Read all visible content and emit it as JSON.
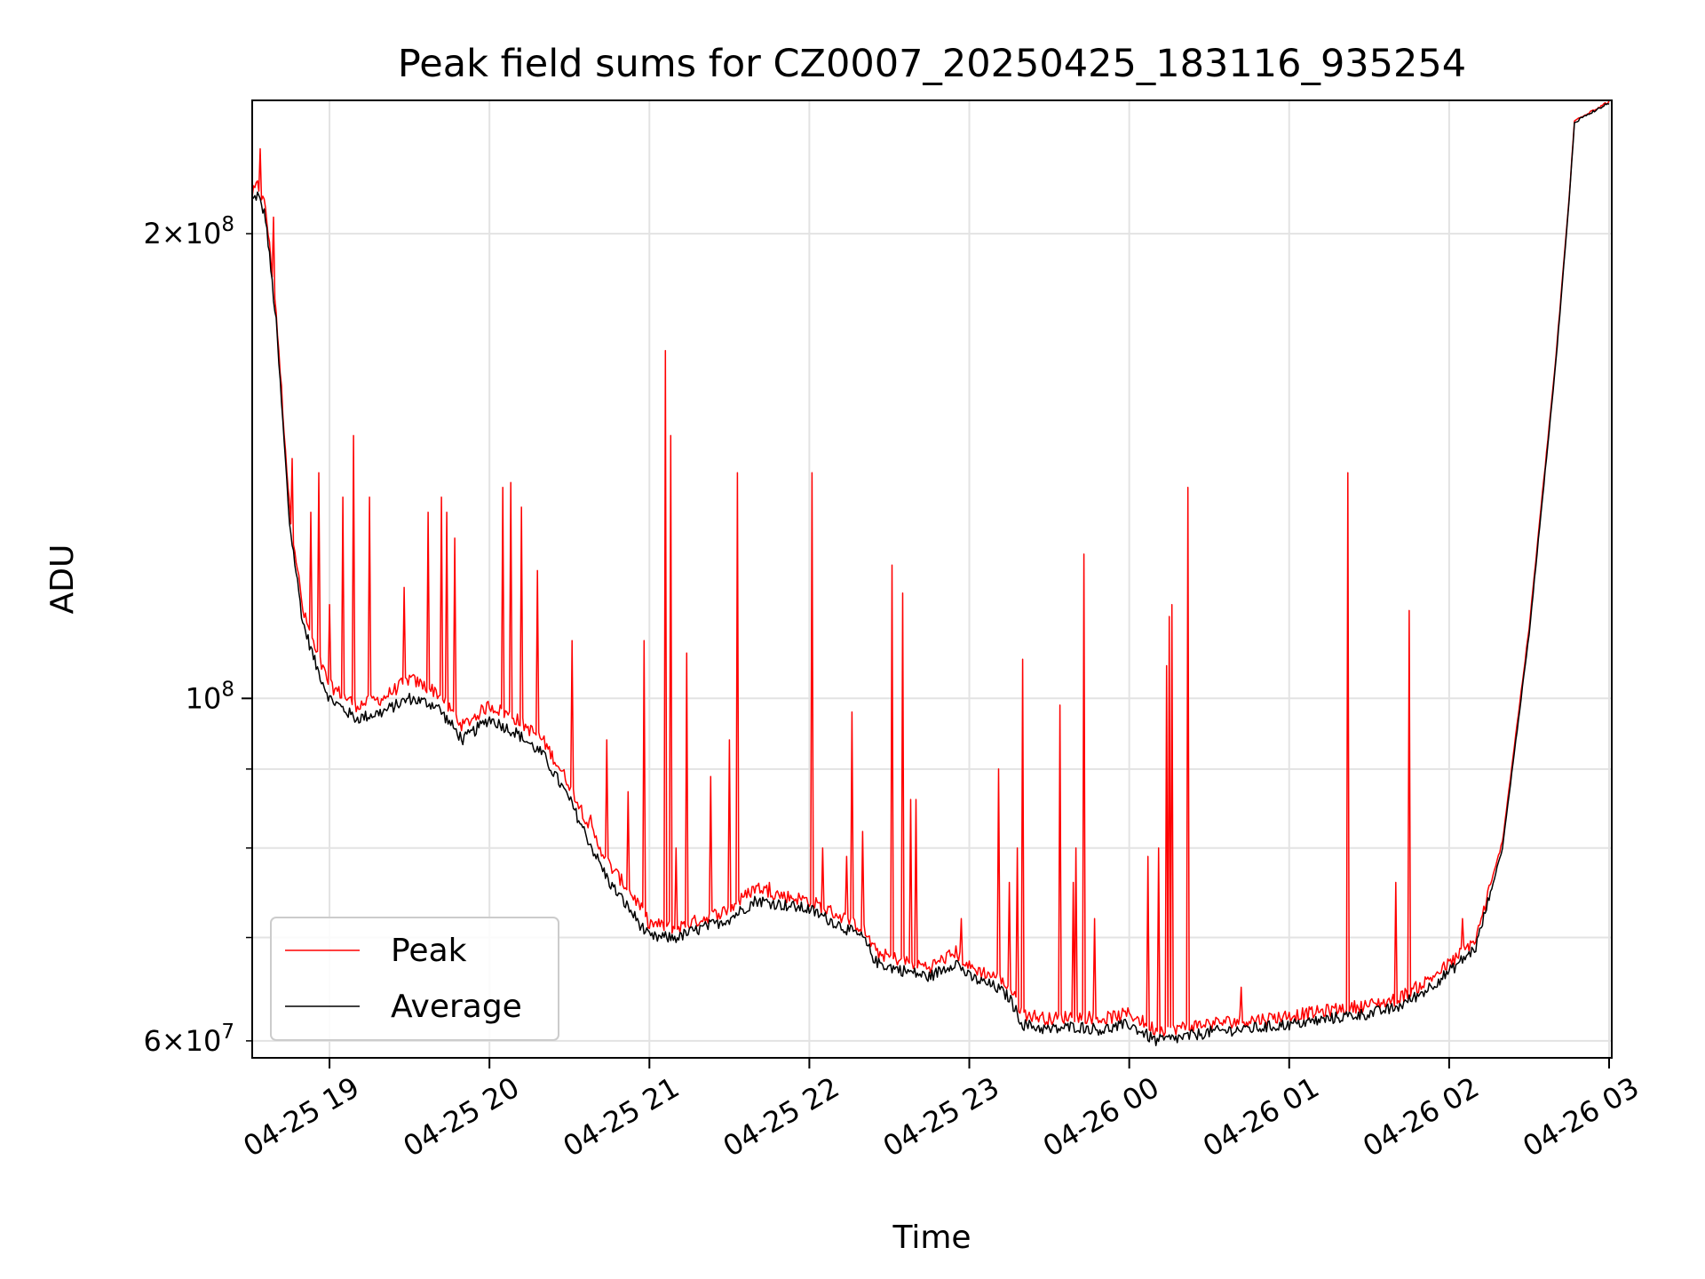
{
  "chart_data": {
    "type": "line",
    "title": "Peak field sums for CZ0007_20250425_183116_935254",
    "xlabel": "Time",
    "ylabel": "ADU",
    "yscale": "log",
    "xlim": [
      "2025-04-25 18:31",
      "2025-04-26 03:01"
    ],
    "ylim": [
      58500000,
      244000000
    ],
    "grid": true,
    "legend_position": "lower-left",
    "x_tick_labels": [
      "04-25 19",
      "04-25 20",
      "04-25 21",
      "04-25 22",
      "04-25 23",
      "04-26 00",
      "04-26 01",
      "04-26 02",
      "04-26 03"
    ],
    "y_tick_labels": [
      "6 × 10^7",
      "10^8",
      "2 × 10^8"
    ],
    "colors": {
      "Peak": "#ff0000",
      "Average": "#000000"
    },
    "series": [
      {
        "name": "Average",
        "x": [
          "04-25 18:31",
          "04-25 18:33",
          "04-25 18:36",
          "04-25 18:40",
          "04-25 18:45",
          "04-25 18:50",
          "04-25 18:55",
          "04-25 19:00",
          "04-25 19:10",
          "04-25 19:20",
          "04-25 19:30",
          "04-25 19:40",
          "04-25 19:50",
          "04-25 20:00",
          "04-25 20:10",
          "04-25 20:20",
          "04-25 20:30",
          "04-25 20:40",
          "04-25 20:45",
          "04-25 20:50",
          "04-25 20:55",
          "04-25 21:00",
          "04-25 21:10",
          "04-25 21:20",
          "04-25 21:30",
          "04-25 21:40",
          "04-25 21:50",
          "04-25 22:00",
          "04-25 22:10",
          "04-25 22:20",
          "04-25 22:25",
          "04-25 22:30",
          "04-25 22:45",
          "04-25 22:55",
          "04-25 23:00",
          "04-25 23:10",
          "04-25 23:15",
          "04-25 23:20",
          "04-25 23:30",
          "04-25 23:40",
          "04-25 23:50",
          "04-26 00:00",
          "04-26 00:10",
          "04-26 00:20",
          "04-26 00:30",
          "04-26 00:40",
          "04-26 00:50",
          "04-26 01:00",
          "04-26 01:10",
          "04-26 01:20",
          "04-26 01:30",
          "04-26 01:40",
          "04-26 01:50",
          "04-26 02:00",
          "04-26 02:10",
          "04-26 02:20",
          "04-26 02:30",
          "04-26 02:40",
          "04-26 02:45",
          "04-26 02:47",
          "04-26 02:50",
          "04-26 03:00"
        ],
        "values": [
          210000000,
          212000000,
          205000000,
          175000000,
          130000000,
          112000000,
          105000000,
          100000000,
          97000000,
          98000000,
          100000000,
          99000000,
          94000000,
          97000000,
          95000000,
          92000000,
          86000000,
          79000000,
          76000000,
          74000000,
          72000000,
          70000000,
          70000000,
          71000000,
          72000000,
          74000000,
          73500000,
          73000000,
          71500000,
          70000000,
          67500000,
          67000000,
          66000000,
          67500000,
          66000000,
          65000000,
          64000000,
          61500000,
          61000000,
          61300000,
          61000000,
          61500000,
          60000000,
          60300000,
          60800000,
          61000000,
          61200000,
          61500000,
          61800000,
          62200000,
          62500000,
          63000000,
          64500000,
          66500000,
          69000000,
          80000000,
          110000000,
          165000000,
          210000000,
          236000000,
          238000000,
          243000000
        ]
      },
      {
        "name": "Peak",
        "x": [
          "04-25 18:31",
          "04-25 18:33",
          "04-25 18:36",
          "04-25 18:40",
          "04-25 18:45",
          "04-25 18:50",
          "04-25 18:55",
          "04-25 19:00",
          "04-25 19:10",
          "04-25 19:20",
          "04-25 19:30",
          "04-25 19:40",
          "04-25 19:50",
          "04-25 20:00",
          "04-25 20:10",
          "04-25 20:20",
          "04-25 20:30",
          "04-25 20:40",
          "04-25 20:45",
          "04-25 20:50",
          "04-25 20:55",
          "04-25 21:00",
          "04-25 21:10",
          "04-25 21:20",
          "04-25 21:30",
          "04-25 21:40",
          "04-25 21:50",
          "04-25 22:00",
          "04-25 22:10",
          "04-25 22:20",
          "04-25 22:25",
          "04-25 22:30",
          "04-25 22:45",
          "04-25 22:55",
          "04-25 23:00",
          "04-25 23:10",
          "04-25 23:15",
          "04-25 23:20",
          "04-25 23:30",
          "04-25 23:40",
          "04-25 23:50",
          "04-26 00:00",
          "04-26 00:10",
          "04-26 00:20",
          "04-26 00:30",
          "04-26 00:40",
          "04-26 00:50",
          "04-26 01:00",
          "04-26 01:10",
          "04-26 01:20",
          "04-26 01:30",
          "04-26 01:40",
          "04-26 01:50",
          "04-26 02:00",
          "04-26 02:10",
          "04-26 02:20",
          "04-26 02:30",
          "04-26 02:40",
          "04-26 02:45",
          "04-26 02:47",
          "04-26 02:50",
          "04-26 03:00"
        ],
        "values": [
          212000000,
          215000000,
          208000000,
          178000000,
          133000000,
          114000000,
          107000000,
          102000000,
          99000000,
          100000000,
          103000000,
          101000000,
          96000000,
          99000000,
          97000000,
          94000000,
          88000000,
          81000000,
          78000000,
          76000000,
          74000000,
          71500000,
          71000000,
          72000000,
          73000000,
          75500000,
          74500000,
          74000000,
          72500000,
          71000000,
          68500000,
          68000000,
          67000000,
          68500000,
          67000000,
          66000000,
          65000000,
          62500000,
          62000000,
          62300000,
          62000000,
          62500000,
          61000000,
          61200000,
          61600000,
          61800000,
          62000000,
          62300000,
          62600000,
          63000000,
          63300000,
          63800000,
          65300000,
          67300000,
          69800000,
          80800000,
          111000000,
          166000000,
          211000000,
          236500000,
          238500000,
          243500000
        ]
      }
    ],
    "peak_spikes": {
      "x": [
        "04-25 18:34",
        "04-25 18:39",
        "04-25 18:41",
        "04-25 18:46",
        "04-25 18:53",
        "04-25 18:56",
        "04-25 19:00",
        "04-25 19:05",
        "04-25 19:09",
        "04-25 19:15",
        "04-25 19:28",
        "04-25 19:37",
        "04-25 19:42",
        "04-25 19:44",
        "04-25 19:47",
        "04-25 20:05",
        "04-25 20:08",
        "04-25 20:12",
        "04-25 20:18",
        "04-25 20:31",
        "04-25 20:38",
        "04-25 20:44",
        "04-25 20:52",
        "04-25 20:58",
        "04-25 21:06",
        "04-25 21:08",
        "04-25 21:10",
        "04-25 21:14",
        "04-25 21:23",
        "04-25 21:30",
        "04-25 21:33",
        "04-25 21:45",
        "04-25 22:01",
        "04-25 22:05",
        "04-25 22:14",
        "04-25 22:16",
        "04-25 22:20",
        "04-25 22:31",
        "04-25 22:35",
        "04-25 22:38",
        "04-25 22:40",
        "04-25 22:57",
        "04-25 23:11",
        "04-25 23:15",
        "04-25 23:18",
        "04-25 23:20",
        "04-25 23:34",
        "04-25 23:39",
        "04-25 23:40",
        "04-25 23:43",
        "04-25 23:47",
        "04-26 00:07",
        "04-26 00:11",
        "04-26 00:14",
        "04-26 00:15",
        "04-26 00:16",
        "04-26 00:22",
        "04-26 00:42",
        "04-26 01:22",
        "04-26 01:40",
        "04-26 01:45",
        "04-26 02:05"
      ],
      "values": [
        227000000,
        205000000,
        168000000,
        143000000,
        132000000,
        140000000,
        115000000,
        135000000,
        148000000,
        135000000,
        118000000,
        132000000,
        135000000,
        132000000,
        127000000,
        137000000,
        138000000,
        133000000,
        121000000,
        109000000,
        84000000,
        94000000,
        87000000,
        109000000,
        168000000,
        148000000,
        80000000,
        107000000,
        89000000,
        94000000,
        140000000,
        76000000,
        140000000,
        80000000,
        79000000,
        98000000,
        82000000,
        122000000,
        117000000,
        86000000,
        86000000,
        72000000,
        90000000,
        76000000,
        80000000,
        106000000,
        99000000,
        76000000,
        80000000,
        124000000,
        72000000,
        79000000,
        80000000,
        105000000,
        113000000,
        115000000,
        137000000,
        65000000,
        140000000,
        76000000,
        114000000,
        72000000
      ]
    }
  }
}
